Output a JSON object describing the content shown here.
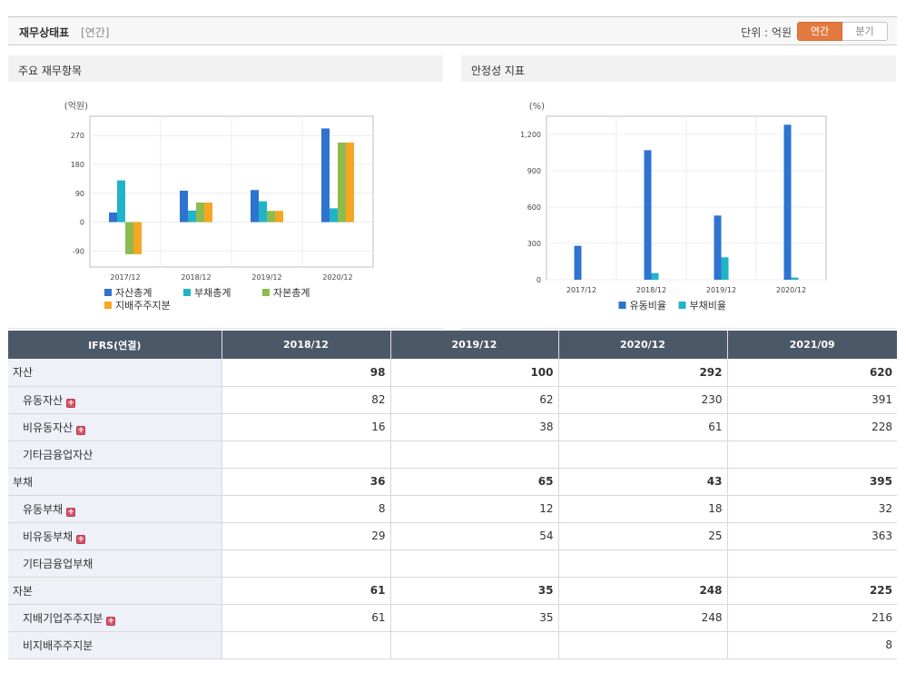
{
  "header": {
    "title": "재무상태표",
    "subtitle": "[연간]",
    "unit_label": "단위 : 억원",
    "toggle": [
      {
        "label": "연간",
        "active": true
      },
      {
        "label": "분기",
        "active": false
      }
    ]
  },
  "panels": {
    "left_title": "주요 재무항목",
    "right_title": "안정성 지표"
  },
  "chart_data": [
    {
      "type": "bar",
      "title": "주요 재무항목",
      "ylabel": "(억원)",
      "ylim": [
        -140,
        330
      ],
      "yticks": [
        -90,
        0,
        90,
        180,
        270
      ],
      "ytick_labels": [
        "-90",
        "0",
        "90",
        "180",
        "270"
      ],
      "categories": [
        "2017/12",
        "2018/12",
        "2019/12",
        "2020/12"
      ],
      "grid": true,
      "legend_position": "bottom",
      "series": [
        {
          "name": "자산총계",
          "color": "#2f73d0",
          "values": [
            30,
            98,
            100,
            292
          ]
        },
        {
          "name": "부채총계",
          "color": "#21b4c8",
          "values": [
            130,
            36,
            65,
            43
          ]
        },
        {
          "name": "자본총계",
          "color": "#8dbb4e",
          "values": [
            -100,
            61,
            35,
            248
          ]
        },
        {
          "name": "지배주주지분",
          "color": "#f5a623",
          "values": [
            -100,
            61,
            35,
            248
          ]
        }
      ]
    },
    {
      "type": "bar",
      "title": "안정성 지표",
      "ylabel": "(%)",
      "ylim": [
        0,
        1350
      ],
      "yticks": [
        0,
        300,
        600,
        900,
        1200
      ],
      "ytick_labels": [
        "0",
        "300",
        "600",
        "900",
        "1,200"
      ],
      "categories": [
        "2017/12",
        "2018/12",
        "2019/12",
        "2020/12"
      ],
      "grid": true,
      "legend_position": "bottom",
      "series": [
        {
          "name": "유동비율",
          "color": "#2f73d0",
          "values": [
            280,
            1070,
            530,
            1280
          ]
        },
        {
          "name": "부채비율",
          "color": "#21b4c8",
          "values": [
            0,
            55,
            185,
            18
          ]
        }
      ]
    }
  ],
  "table": {
    "corner": "IFRS(연결)",
    "columns": [
      "2018/12",
      "2019/12",
      "2020/12",
      "2021/09"
    ],
    "rows": [
      {
        "label": "자산",
        "level": 0,
        "expand": false,
        "values": [
          "98",
          "100",
          "292",
          "620"
        ]
      },
      {
        "label": "유동자산",
        "level": 1,
        "expand": true,
        "values": [
          "82",
          "62",
          "230",
          "391"
        ]
      },
      {
        "label": "비유동자산",
        "level": 1,
        "expand": true,
        "values": [
          "16",
          "38",
          "61",
          "228"
        ]
      },
      {
        "label": "기타금융업자산",
        "level": 1,
        "expand": false,
        "values": [
          "",
          "",
          "",
          ""
        ]
      },
      {
        "label": "부채",
        "level": 0,
        "expand": false,
        "values": [
          "36",
          "65",
          "43",
          "395"
        ]
      },
      {
        "label": "유동부채",
        "level": 1,
        "expand": true,
        "values": [
          "8",
          "12",
          "18",
          "32"
        ]
      },
      {
        "label": "비유동부채",
        "level": 1,
        "expand": true,
        "values": [
          "29",
          "54",
          "25",
          "363"
        ]
      },
      {
        "label": "기타금융업부채",
        "level": 1,
        "expand": false,
        "values": [
          "",
          "",
          "",
          ""
        ]
      },
      {
        "label": "자본",
        "level": 0,
        "expand": false,
        "values": [
          "61",
          "35",
          "248",
          "225"
        ]
      },
      {
        "label": "지배기업주주지분",
        "level": 1,
        "expand": true,
        "values": [
          "61",
          "35",
          "248",
          "216"
        ]
      },
      {
        "label": "비지배주주지분",
        "level": 1,
        "expand": false,
        "values": [
          "",
          "",
          "",
          "8"
        ]
      }
    ]
  }
}
